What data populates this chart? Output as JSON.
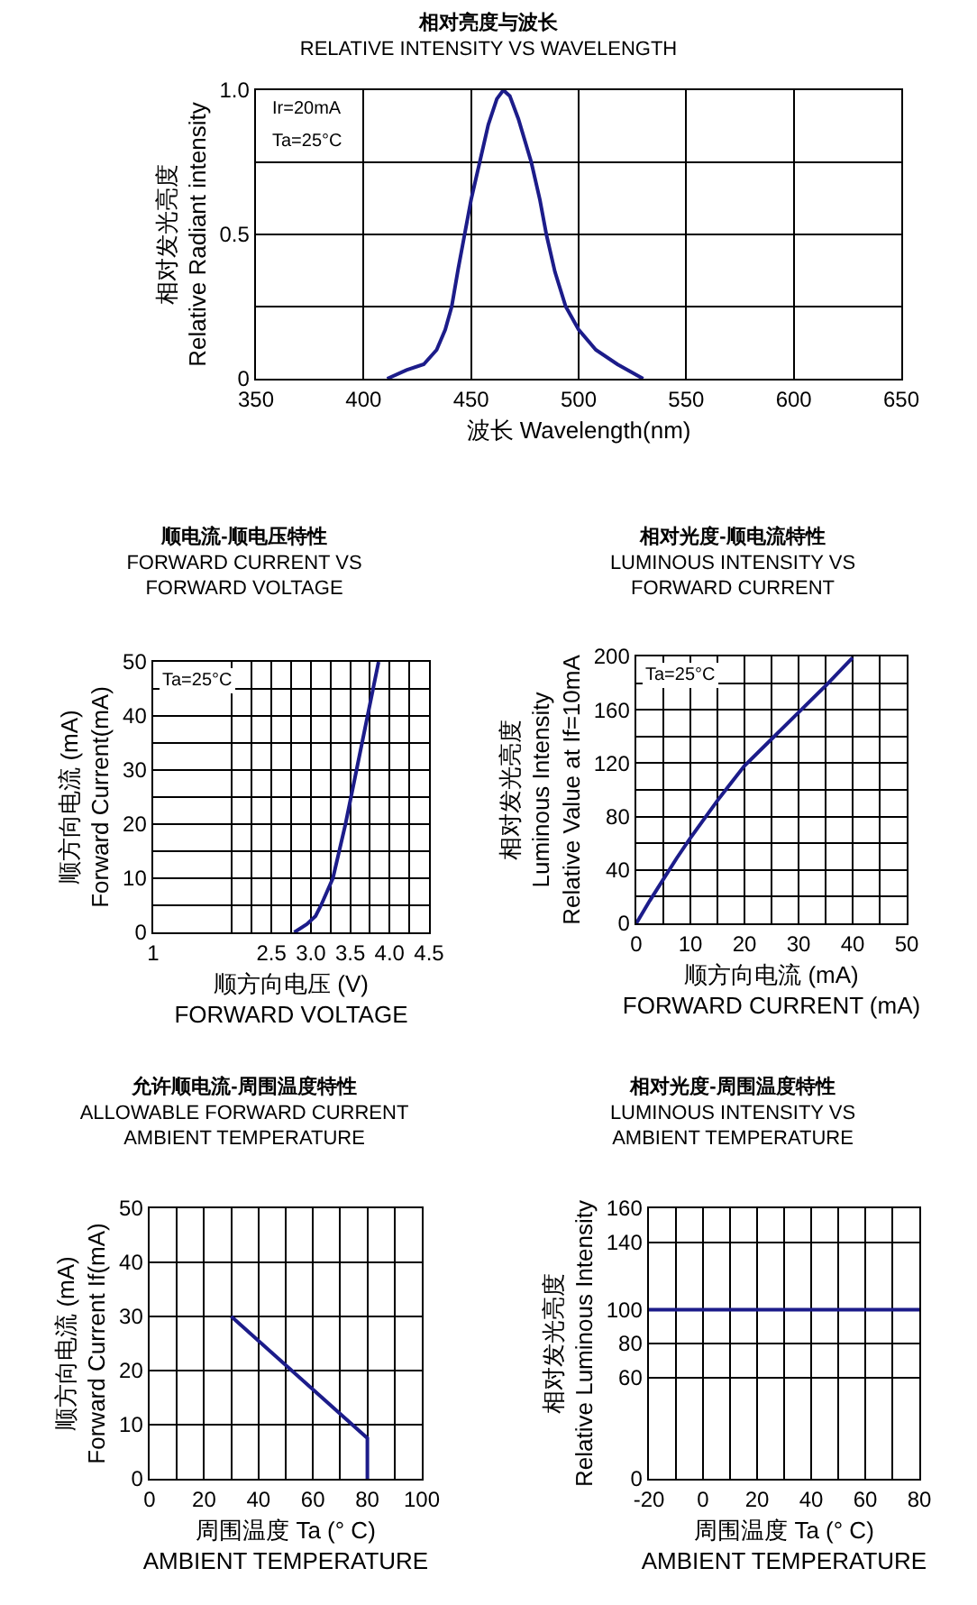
{
  "chart_data": [
    {
      "type": "line",
      "title": "相对亮度与波长",
      "subtitle": "RELATIVE INTENSITY VS WAVELENGTH",
      "xlabel": "波长 Wavelength(nm)",
      "ylabel": "相对发光亮度\nRelative Radiant intensity",
      "annotations": [
        "Ir=20mA",
        "Ta=25°C"
      ],
      "series": [
        {
          "color": "#1c1c8a",
          "x": [
            411,
            420,
            428,
            434,
            438,
            441,
            444,
            447,
            450,
            454,
            458,
            462,
            465,
            468,
            472,
            478,
            482,
            485,
            489,
            494,
            500,
            508,
            518,
            530
          ],
          "values": [
            0,
            0.03,
            0.05,
            0.1,
            0.17,
            0.25,
            0.38,
            0.5,
            0.62,
            0.75,
            0.88,
            0.97,
            1.0,
            0.98,
            0.9,
            0.75,
            0.62,
            0.5,
            0.37,
            0.25,
            0.17,
            0.1,
            0.05,
            0
          ]
        }
      ],
      "xlim": [
        350,
        650
      ],
      "xticks": [
        350,
        400,
        450,
        500,
        550,
        600,
        650
      ],
      "ylim": [
        0,
        1
      ],
      "yticks": [
        0,
        {
          "value": 0.25,
          "label": null
        },
        {
          "value": 0.5,
          "label": "0.5"
        },
        {
          "value": 0.75,
          "label": null
        },
        {
          "value": 1,
          "label": "1.0"
        }
      ],
      "grid": true,
      "marker": "none",
      "line_style": "solid"
    },
    {
      "type": "line",
      "title": "顺电流-顺电压特性",
      "subtitle": "FORWARD CURRENT VS\nFORWARD VOLTAGE",
      "xlabel": "顺方向电压 (V)\nFORWARD VOLTAGE",
      "ylabel": "顺方向电流 (mA)\nForward Current(mA)",
      "annotations": [
        "Ta=25°C"
      ],
      "series": [
        {
          "color": "#1c1c8a",
          "x": [
            2.79,
            2.95,
            3.06,
            3.13,
            3.19,
            3.28,
            3.36,
            3.44,
            3.51,
            3.58,
            3.65,
            3.72,
            3.79,
            3.86
          ],
          "values": [
            0,
            1.5,
            3,
            5,
            7,
            10,
            15,
            20,
            25,
            30,
            35,
            40,
            45,
            50
          ]
        }
      ],
      "xlim": [
        1,
        4.5
      ],
      "xticks": [
        1,
        {
          "value": 2,
          "label": null
        },
        {
          "value": 2.25,
          "label": null
        },
        {
          "value": 2.5,
          "label": "2.5"
        },
        {
          "value": 2.75,
          "label": null
        },
        {
          "value": 3,
          "label": "3.0"
        },
        {
          "value": 3.25,
          "label": null
        },
        {
          "value": 3.5,
          "label": "3.5"
        },
        {
          "value": 3.75,
          "label": null
        },
        {
          "value": 4,
          "label": "4.0"
        },
        {
          "value": 4.25,
          "label": null
        },
        {
          "value": 4.5,
          "label": "4.5"
        }
      ],
      "ylim": [
        0,
        50
      ],
      "yticks": [
        0,
        {
          "value": 5,
          "label": null
        },
        10,
        {
          "value": 15,
          "label": null
        },
        20,
        {
          "value": 25,
          "label": null
        },
        30,
        {
          "value": 35,
          "label": null
        },
        40,
        {
          "value": 45,
          "label": null
        },
        50
      ],
      "grid": true,
      "marker": "none",
      "line_style": "solid"
    },
    {
      "type": "line",
      "title": "相对光度-顺电流特性",
      "subtitle": "LUMINOUS INTENSITY VS\nFORWARD CURRENT",
      "xlabel": "顺方向电流 (mA)\nFORWARD CURRENT (mA)",
      "ylabel": "相对发光亮度\nLuminous Intensity\nRelative Value at If=10mA",
      "annotations": [
        "Ta=25°C"
      ],
      "series": [
        {
          "color": "#1c1c8a",
          "x": [
            0,
            2.5,
            5,
            7.5,
            10,
            12.5,
            15,
            17.5,
            20,
            25,
            30,
            35,
            40
          ],
          "values": [
            0,
            17,
            33,
            49,
            64,
            78,
            92,
            105,
            118,
            138,
            158,
            178,
            199
          ]
        }
      ],
      "xlim": [
        0,
        50
      ],
      "xticks": [
        0,
        {
          "value": 5,
          "label": null
        },
        10,
        {
          "value": 15,
          "label": null
        },
        20,
        {
          "value": 25,
          "label": null
        },
        30,
        {
          "value": 35,
          "label": null
        },
        40,
        {
          "value": 45,
          "label": null
        },
        50
      ],
      "ylim": [
        0,
        200
      ],
      "yticks": [
        0,
        {
          "value": 20,
          "label": null
        },
        40,
        {
          "value": 60,
          "label": null
        },
        80,
        {
          "value": 100,
          "label": null
        },
        120,
        {
          "value": 140,
          "label": null
        },
        160,
        {
          "value": 180,
          "label": null
        },
        200
      ],
      "grid": true,
      "marker": "none",
      "line_style": "solid"
    },
    {
      "type": "line",
      "title": "允许顺电流-周围温度特性",
      "subtitle": "ALLOWABLE FORWARD CURRENT\nAMBIENT TEMPERATURE",
      "xlabel": "周围温度 Ta (° C)\nAMBIENT TEMPERATURE",
      "ylabel": "顺方向电流 (mA)\nForward Current If(mA)",
      "series": [
        {
          "color": "#1c1c8a",
          "x": [
            30,
            80,
            80
          ],
          "values": [
            30,
            7.5,
            0
          ]
        }
      ],
      "xlim": [
        0,
        100
      ],
      "xticks": [
        0,
        {
          "value": 10,
          "label": null
        },
        20,
        {
          "value": 30,
          "label": null
        },
        40,
        {
          "value": 50,
          "label": null
        },
        60,
        {
          "value": 70,
          "label": null
        },
        80,
        {
          "value": 90,
          "label": null
        },
        100
      ],
      "ylim": [
        0,
        50
      ],
      "yticks": [
        0,
        10,
        20,
        30,
        40,
        50
      ],
      "grid": true,
      "marker": "none",
      "line_style": "solid"
    },
    {
      "type": "line",
      "title": "相对光度-周围温度特性",
      "subtitle": "LUMINOUS INTENSITY VS\nAMBIENT TEMPERATURE",
      "xlabel": "周围温度 Ta (° C)\nAMBIENT TEMPERATURE",
      "ylabel": "相对发光亮度\nRelative Luminous Intensity",
      "series": [
        {
          "color": "#1c1c8a",
          "x": [
            -20,
            80
          ],
          "values": [
            100,
            100
          ]
        }
      ],
      "xlim": [
        -20,
        80
      ],
      "xticks": [
        -20,
        {
          "value": -10,
          "label": null
        },
        0,
        {
          "value": 10,
          "label": null
        },
        20,
        {
          "value": 30,
          "label": null
        },
        40,
        {
          "value": 50,
          "label": null
        },
        60,
        {
          "value": 70,
          "label": null
        },
        80
      ],
      "ylim": [
        0,
        160
      ],
      "yticks": [
        0,
        60,
        80,
        100,
        140,
        160
      ],
      "grid": true,
      "marker": "none",
      "line_style": "solid"
    }
  ]
}
